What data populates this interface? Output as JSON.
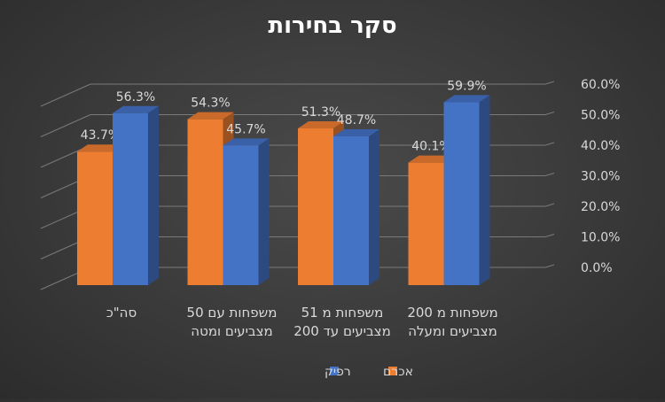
{
  "chart_data": {
    "type": "bar",
    "title": "סקר בחירות",
    "categories": [
      [
        "סה\"כ"
      ],
      [
        "משפחות עם 50",
        "מצביעים ומטה"
      ],
      [
        "משפחות מ 51",
        "מצביעים עד 200"
      ],
      [
        "משפחות מ 200",
        "מצביעים ומעלה"
      ]
    ],
    "series": [
      {
        "name": "אכרם",
        "color": "#ED7D31",
        "values": [
          43.7,
          54.3,
          51.3,
          40.1
        ]
      },
      {
        "name": "רפיק",
        "color": "#4472C4",
        "values": [
          56.3,
          45.7,
          48.7,
          59.9
        ]
      }
    ],
    "y_ticks": [
      "0.0%",
      "10.0%",
      "20.0%",
      "30.0%",
      "40.0%",
      "50.0%",
      "60.0%"
    ],
    "data_labels": [
      [
        "43.7%",
        "54.3%",
        "51.3%",
        "40.1%"
      ],
      [
        "56.3%",
        "45.7%",
        "48.7%",
        "59.9%"
      ]
    ],
    "ylim": [
      0,
      60
    ],
    "y_axis_position": "right",
    "x_axis_reversed": true,
    "grid": true,
    "legend_position": "bottom",
    "style": "3d-clustered-column"
  }
}
